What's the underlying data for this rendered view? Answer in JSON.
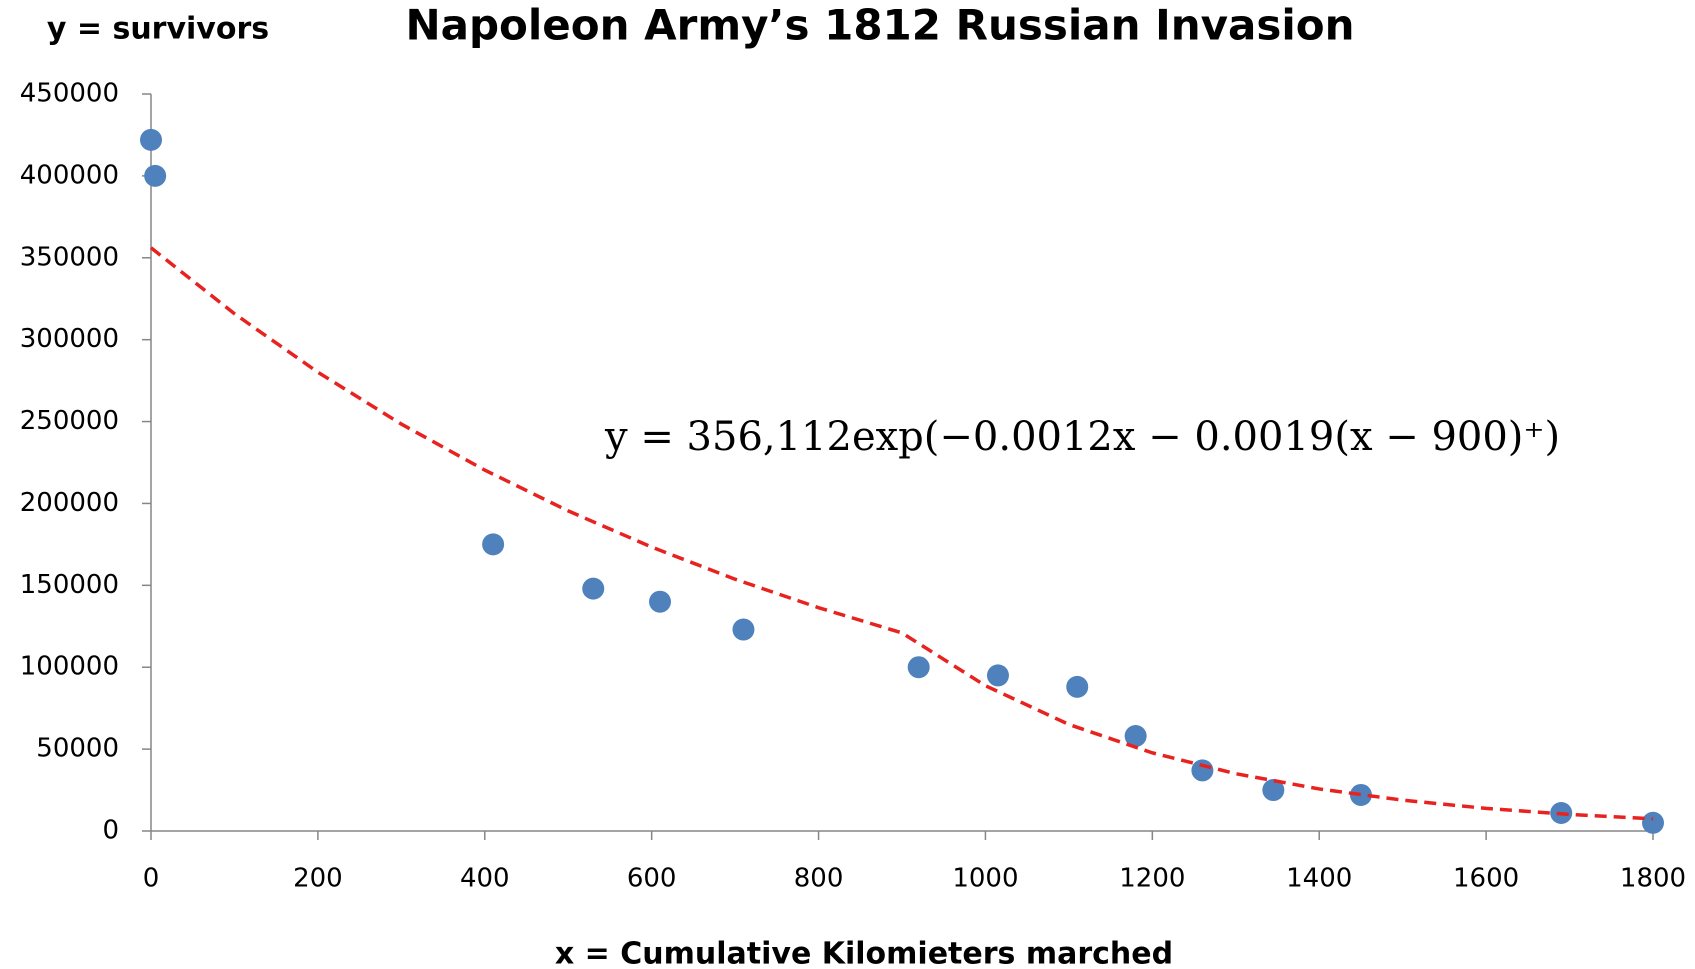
{
  "chart_data": {
    "type": "scatter",
    "title": "Napoleon Army’s 1812 Russian Invasion",
    "y_label": "y = survivors",
    "x_label": "x = Cumulative Kilomieters  marched",
    "annotation": "y = 356,112exp(−0.0012x −  0.0019(x − 900)⁺)",
    "xlim": [
      0,
      1800
    ],
    "xticks": [
      0,
      200,
      400,
      600,
      800,
      1000,
      1200,
      1400,
      1600,
      1800
    ],
    "ylim": [
      0,
      450000
    ],
    "yticks": [
      0,
      50000,
      100000,
      150000,
      200000,
      250000,
      300000,
      350000,
      400000,
      450000
    ],
    "grid": false,
    "series": [
      {
        "type": "scatter",
        "color": "#4f81bd",
        "x": [
          0,
          5,
          410,
          530,
          610,
          710,
          920,
          1015,
          1110,
          1180,
          1260,
          1345,
          1450,
          1690,
          1800
        ],
        "values": [
          422000,
          400000,
          175000,
          148000,
          140000,
          123000,
          100000,
          95000,
          88000,
          58000,
          37000,
          25000,
          22000,
          11000,
          5000
        ]
      },
      {
        "type": "line",
        "color": "#e8231f",
        "dashed": true,
        "x": [
          0,
          100,
          200,
          300,
          400,
          500,
          600,
          700,
          800,
          900,
          1000,
          1100,
          1200,
          1300,
          1400,
          1500,
          1600,
          1700,
          1800
        ],
        "values": [
          356112,
          315840,
          280120,
          248460,
          220360,
          195440,
          173350,
          153740,
          136360,
          120940,
          88710,
          65060,
          47720,
          35000,
          25670,
          18830,
          13810,
          10130,
          7430
        ]
      }
    ]
  }
}
